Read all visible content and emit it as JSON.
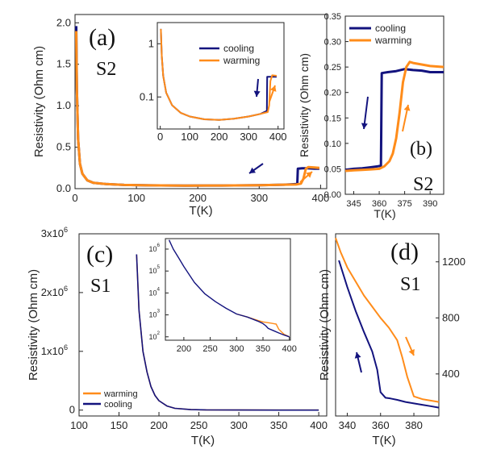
{
  "colors": {
    "cooling": "#13137e",
    "warming": "#ff8c1a"
  },
  "chart_data": [
    {
      "id": "a",
      "type": "line",
      "panel_label": "(a)",
      "sample_label": "S2",
      "xlabel": "T(K)",
      "ylabel": "Resistivity (Ohm cm)",
      "xlim": [
        0,
        410
      ],
      "ylim": [
        0,
        2.1
      ],
      "xticks": [
        "0",
        "100",
        "200",
        "300",
        "400"
      ],
      "yticks": [
        "0.0",
        "0.5",
        "1.0",
        "1.5",
        "2.0"
      ],
      "series": [
        {
          "name": "cooling",
          "color_key": "cooling",
          "x": [
            2,
            3,
            5,
            8,
            12,
            20,
            30,
            50,
            80,
            120,
            180,
            240,
            300,
            340,
            356,
            362,
            363,
            370,
            380,
            390,
            398
          ],
          "y": [
            1.96,
            1.2,
            0.6,
            0.3,
            0.18,
            0.1,
            0.07,
            0.055,
            0.045,
            0.04,
            0.037,
            0.038,
            0.042,
            0.048,
            0.053,
            0.055,
            0.24,
            0.245,
            0.245,
            0.24,
            0.24
          ]
        },
        {
          "name": "warming",
          "color_key": "warming",
          "x": [
            2,
            3,
            5,
            8,
            12,
            20,
            30,
            50,
            80,
            120,
            180,
            240,
            300,
            340,
            360,
            368,
            372,
            376,
            380,
            390,
            398
          ],
          "y": [
            1.9,
            1.2,
            0.6,
            0.3,
            0.18,
            0.1,
            0.07,
            0.055,
            0.045,
            0.04,
            0.037,
            0.038,
            0.042,
            0.048,
            0.05,
            0.06,
            0.12,
            0.24,
            0.26,
            0.255,
            0.25
          ]
        }
      ]
    },
    {
      "id": "a-inset",
      "type": "line",
      "yscale": "log",
      "xlim": [
        -10,
        420
      ],
      "ylim": [
        0.025,
        2.5
      ],
      "xticks": [
        "0",
        "100",
        "200",
        "300",
        "400"
      ],
      "yticks": [
        "0.1",
        "1"
      ],
      "legend": [
        "cooling",
        "warming"
      ],
      "series": [
        {
          "name": "cooling",
          "color_key": "cooling",
          "x": [
            2,
            5,
            10,
            20,
            40,
            70,
            100,
            150,
            200,
            250,
            300,
            340,
            360,
            362,
            363,
            380,
            395
          ],
          "y": [
            1.9,
            0.6,
            0.25,
            0.12,
            0.07,
            0.05,
            0.043,
            0.038,
            0.037,
            0.039,
            0.043,
            0.048,
            0.054,
            0.055,
            0.24,
            0.24,
            0.24
          ]
        },
        {
          "name": "warming",
          "color_key": "warming",
          "x": [
            2,
            5,
            10,
            20,
            40,
            70,
            100,
            150,
            200,
            250,
            300,
            340,
            365,
            370,
            374,
            380,
            395
          ],
          "y": [
            1.9,
            0.6,
            0.25,
            0.12,
            0.07,
            0.05,
            0.043,
            0.038,
            0.037,
            0.039,
            0.043,
            0.048,
            0.052,
            0.07,
            0.2,
            0.255,
            0.25
          ]
        }
      ]
    },
    {
      "id": "b",
      "type": "line",
      "panel_label": "(b)",
      "sample_label": "S2",
      "xlabel": "T(K)",
      "xlim": [
        340,
        398
      ],
      "ylim": [
        0,
        0.35
      ],
      "xticks": [
        "345",
        "360",
        "375",
        "390"
      ],
      "yticks": [
        "0.00",
        "0.05",
        "0.10",
        "0.15",
        "0.20",
        "0.25",
        "0.30",
        "0.35"
      ],
      "legend": [
        "cooling",
        "warming"
      ],
      "series": [
        {
          "name": "cooling",
          "color_key": "cooling",
          "x": [
            340,
            345,
            350,
            355,
            359,
            361,
            361.5,
            365,
            370,
            375,
            380,
            385,
            390,
            395,
            398
          ],
          "y": [
            0.048,
            0.05,
            0.051,
            0.053,
            0.055,
            0.056,
            0.238,
            0.24,
            0.242,
            0.246,
            0.244,
            0.243,
            0.24,
            0.24,
            0.24
          ]
        },
        {
          "name": "warming",
          "color_key": "warming",
          "x": [
            340,
            345,
            350,
            355,
            360,
            363,
            366,
            368,
            370,
            372,
            374,
            376,
            378,
            380,
            385,
            390,
            398
          ],
          "y": [
            0.046,
            0.047,
            0.048,
            0.049,
            0.05,
            0.055,
            0.065,
            0.08,
            0.11,
            0.16,
            0.22,
            0.25,
            0.26,
            0.258,
            0.255,
            0.252,
            0.25
          ]
        }
      ]
    },
    {
      "id": "c",
      "type": "line",
      "panel_label": "(c)",
      "sample_label": "S1",
      "xlabel": "T(K)",
      "ylabel": "Resistivity (Ohm cm)",
      "xlim": [
        100,
        410
      ],
      "ylim": [
        -100000,
        3000000
      ],
      "xticks": [
        "100",
        "150",
        "200",
        "250",
        "300",
        "350",
        "400"
      ],
      "yticks": [
        "0",
        "1x10",
        "2x10",
        "3x10"
      ],
      "ytick_exponent": "6",
      "legend": [
        "warming",
        "cooling"
      ],
      "series": [
        {
          "name": "cooling",
          "color_key": "cooling",
          "x": [
            172,
            175,
            180,
            185,
            190,
            195,
            200,
            210,
            220,
            240,
            260,
            300,
            350,
            400
          ],
          "y": [
            2650000,
            1700000,
            1000000,
            650000,
            400000,
            250000,
            160000,
            70000,
            30000,
            8000,
            3000,
            1000,
            300,
            100
          ]
        },
        {
          "name": "warming",
          "color_key": "warming",
          "x": [
            172,
            175,
            180,
            185,
            190,
            195,
            200,
            210,
            220,
            240,
            260,
            300,
            350,
            400
          ],
          "y": [
            2650000,
            1700000,
            1000000,
            650000,
            400000,
            250000,
            160000,
            70000,
            30000,
            8000,
            3000,
            1000,
            300,
            100
          ]
        }
      ]
    },
    {
      "id": "c-inset",
      "type": "line",
      "yscale": "log",
      "xlim": [
        165,
        402
      ],
      "ylim": [
        70,
        3000000
      ],
      "xticks": [
        "200",
        "250",
        "300",
        "350",
        "400"
      ],
      "yticks": [
        "10",
        "10",
        "10",
        "10",
        "10"
      ],
      "ytick_exponents": [
        "2",
        "3",
        "4",
        "5",
        "6"
      ],
      "series": [
        {
          "name": "cooling",
          "color_key": "cooling",
          "x": [
            172,
            180,
            190,
            200,
            220,
            240,
            260,
            280,
            300,
            320,
            340,
            350,
            355,
            360,
            370,
            380,
            390,
            400
          ],
          "y": [
            2600000,
            1000000,
            400000,
            160000,
            30000,
            9000,
            4000,
            2000,
            1100,
            800,
            520,
            400,
            320,
            240,
            190,
            150,
            120,
            100
          ]
        },
        {
          "name": "warming",
          "color_key": "warming",
          "x": [
            300,
            320,
            340,
            350,
            360,
            365,
            370,
            375,
            380,
            390,
            400
          ],
          "y": [
            1100,
            800,
            560,
            480,
            440,
            420,
            400,
            380,
            220,
            130,
            100
          ]
        }
      ]
    },
    {
      "id": "d",
      "type": "line",
      "panel_label": "(d)",
      "sample_label": "S1",
      "ylabel": "Resistivity (Ohm cm)",
      "xlabel": "T(K)",
      "xlim": [
        333,
        395
      ],
      "ylim": [
        100,
        1400
      ],
      "xticks": [
        "340",
        "360",
        "380"
      ],
      "yticks": [
        "400",
        "800",
        "1200"
      ],
      "series": [
        {
          "name": "cooling",
          "color_key": "cooling",
          "x": [
            335,
            340,
            345,
            350,
            355,
            358,
            360,
            363,
            366,
            370,
            375,
            380,
            385,
            390,
            395
          ],
          "y": [
            1210,
            1020,
            850,
            700,
            560,
            430,
            270,
            230,
            225,
            215,
            200,
            190,
            180,
            170,
            160
          ]
        },
        {
          "name": "warming",
          "color_key": "warming",
          "x": [
            333,
            336,
            340,
            345,
            350,
            355,
            360,
            365,
            370,
            373,
            376,
            380,
            385,
            390,
            395
          ],
          "y": [
            1370,
            1270,
            1160,
            1060,
            960,
            880,
            800,
            730,
            640,
            520,
            380,
            240,
            220,
            210,
            200
          ]
        }
      ]
    }
  ]
}
